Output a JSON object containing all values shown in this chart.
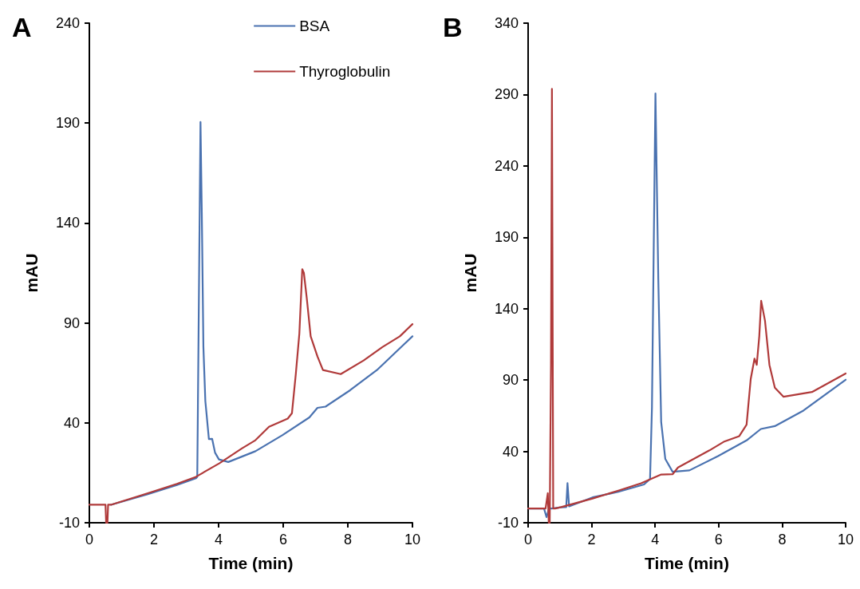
{
  "chart_data": [
    {
      "type": "line",
      "title": "A",
      "xlabel": "Time (min)",
      "ylabel": "mAU",
      "xlim": [
        0,
        10
      ],
      "xticks": [
        0,
        2,
        4,
        6,
        8,
        10
      ],
      "ylim": [
        -10,
        240
      ],
      "yticks": [
        -10,
        40,
        90,
        140,
        190,
        240
      ],
      "grid": false,
      "legend": "top",
      "marker": "none",
      "line_style": "solid",
      "series": [
        {
          "name": "BSA",
          "color": "#4a72b0",
          "x": [
            0.67,
            1.79,
            2.71,
            3.3,
            3.34,
            3.44,
            3.48,
            3.53,
            3.59,
            3.7,
            3.8,
            3.89,
            4.01,
            4.3,
            5.14,
            5.98,
            6.81,
            7.06,
            7.31,
            8.07,
            8.9,
            10
          ],
          "values": [
            -1,
            4.2,
            8.9,
            12.3,
            13,
            190.5,
            145.5,
            77.9,
            50.9,
            31.9,
            32,
            25.1,
            21.7,
            20.4,
            25.8,
            33.9,
            42.7,
            47.5,
            48.1,
            56.3,
            66.4,
            83.3
          ]
        },
        {
          "name": "Thyroglobulin",
          "color": "#b03a3a",
          "x": [
            0,
            0.5,
            0.52,
            0.56,
            0.58,
            0.67,
            1.79,
            2.71,
            3.3,
            4.03,
            4.72,
            5.14,
            5.56,
            6.14,
            6.27,
            6.39,
            6.5,
            6.59,
            6.64,
            6.73,
            6.85,
            7.06,
            7.23,
            7.78,
            8.49,
            9.07,
            9.61,
            10
          ],
          "values": [
            -1,
            -1,
            -10,
            -10,
            -1,
            -1,
            4.7,
            9.5,
            13,
            19.8,
            27.2,
            31.3,
            38,
            42.1,
            44.8,
            64.4,
            84.7,
            116.9,
            115,
            102.3,
            83.3,
            73.2,
            66.4,
            64.4,
            71.2,
            77.9,
            83.3,
            89.4
          ]
        }
      ]
    },
    {
      "type": "line",
      "title": "B",
      "xlabel": "Time (min)",
      "ylabel": "mAU",
      "xlim": [
        0,
        10
      ],
      "xticks": [
        0,
        2,
        4,
        6,
        8,
        10
      ],
      "ylim": [
        -10,
        340
      ],
      "yticks": [
        -10,
        40,
        90,
        140,
        190,
        240,
        290,
        340
      ],
      "grid": false,
      "legend": false,
      "marker": "none",
      "line_style": "solid",
      "series": [
        {
          "color": "#4a72b0",
          "x": [
            0,
            0.5,
            0.58,
            0.66,
            0.75,
            1.04,
            1.2,
            1.24,
            1.29,
            2.03,
            2.84,
            3.65,
            3.84,
            3.9,
            4.01,
            4.1,
            4.19,
            4.32,
            4.55,
            5.08,
            5.98,
            6.88,
            7.33,
            7.77,
            8.67,
            10
          ],
          "values": [
            0,
            0,
            -6,
            0,
            0,
            0.8,
            1,
            17.7,
            1.5,
            7.8,
            11.7,
            16.8,
            20.7,
            70.7,
            290.7,
            160.5,
            60.7,
            34.7,
            25.7,
            26.7,
            36.7,
            47.7,
            55.7,
            57.7,
            68.6,
            90.2
          ]
        },
        {
          "color": "#b03a3a",
          "x": [
            0,
            0.55,
            0.62,
            0.65,
            0.68,
            0.72,
            0.75,
            0.79,
            0.85,
            1.04,
            2.03,
            2.84,
            3.56,
            4.19,
            4.55,
            4.72,
            5.71,
            6.16,
            6.65,
            6.88,
            7.01,
            7.13,
            7.2,
            7.28,
            7.34,
            7.46,
            7.6,
            7.77,
            8.04,
            8.94,
            10
          ],
          "values": [
            0,
            0,
            10.7,
            -10,
            -10,
            100,
            293.9,
            0,
            0,
            1,
            7,
            12.5,
            17.7,
            23.8,
            24,
            28.7,
            40.7,
            46.7,
            50.7,
            58.7,
            90.6,
            105,
            100.6,
            120.6,
            145.5,
            131.5,
            100.6,
            84.6,
            78.3,
            81.6,
            94.6
          ]
        }
      ]
    }
  ]
}
